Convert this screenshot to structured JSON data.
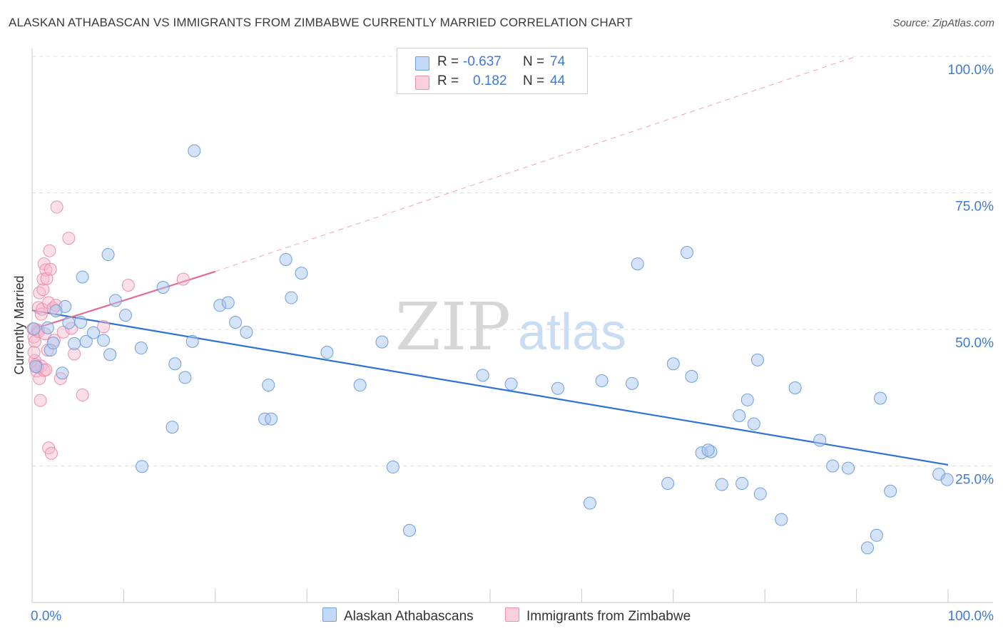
{
  "title": "ALASKAN ATHABASCAN VS IMMIGRANTS FROM ZIMBABWE CURRENTLY MARRIED CORRELATION CHART",
  "source": "Source: ZipAtlas.com",
  "watermark": {
    "zip": "ZIP",
    "atlas": "atlas"
  },
  "legend": {
    "rows": [
      {
        "r_label": "R =",
        "r_value": "-0.637",
        "n_label": "N =",
        "n_value": "74"
      },
      {
        "r_label": "R =",
        "r_value": "0.182",
        "n_label": "N =",
        "n_value": "44"
      }
    ]
  },
  "chart_data": {
    "type": "scatter",
    "title": "ALASKAN ATHABASCAN VS IMMIGRANTS FROM ZIMBABWE CURRENTLY MARRIED CORRELATION CHART",
    "xlabel": "",
    "ylabel": "Currently Married",
    "xlim": [
      0,
      100
    ],
    "ylim": [
      0,
      100
    ],
    "x_tick_labels": [
      "0.0%",
      "100.0%"
    ],
    "y_tick_labels": [
      "25.0%",
      "50.0%",
      "75.0%",
      "100.0%"
    ],
    "y_ticks": [
      25,
      50,
      75,
      100
    ],
    "grid": true,
    "colors": {
      "blue_fill": "#aac8f0",
      "blue_stroke": "#6f9fdc",
      "blue_line": "#2f72d0",
      "pink_fill": "#f6b9cc",
      "pink_stroke": "#ec8fab",
      "pink_line": "#e46b94",
      "axis_label": "#3d7ad6"
    },
    "series": [
      {
        "name": "Alaskan Athabascans",
        "color": "#aac8f0",
        "trend": {
          "x": [
            0,
            100
          ],
          "y": [
            53.5,
            25.2
          ]
        },
        "points": [
          [
            1.7,
            50.3
          ],
          [
            2.0,
            46.2
          ],
          [
            2.3,
            47.5
          ],
          [
            3.3,
            42.0
          ],
          [
            3.6,
            54.2
          ],
          [
            4.0,
            51.2
          ],
          [
            2.6,
            53.4
          ],
          [
            4.6,
            47.4
          ],
          [
            5.3,
            51.3
          ],
          [
            5.5,
            59.6
          ],
          [
            5.9,
            47.8
          ],
          [
            6.7,
            49.4
          ],
          [
            7.8,
            48.0
          ],
          [
            8.5,
            45.4
          ],
          [
            8.3,
            63.7
          ],
          [
            9.1,
            55.3
          ],
          [
            10.2,
            52.6
          ],
          [
            11.9,
            46.6
          ],
          [
            12.0,
            24.9
          ],
          [
            14.3,
            57.7
          ],
          [
            15.6,
            43.7
          ],
          [
            15.3,
            32.1
          ],
          [
            16.7,
            41.2
          ],
          [
            17.5,
            47.8
          ],
          [
            17.7,
            82.7
          ],
          [
            20.5,
            54.4
          ],
          [
            21.4,
            54.9
          ],
          [
            22.2,
            51.3
          ],
          [
            23.4,
            49.5
          ],
          [
            25.4,
            33.6
          ],
          [
            25.8,
            39.8
          ],
          [
            26.1,
            33.6
          ],
          [
            27.7,
            62.8
          ],
          [
            28.3,
            55.8
          ],
          [
            29.4,
            60.3
          ],
          [
            32.2,
            45.8
          ],
          [
            35.8,
            39.8
          ],
          [
            38.2,
            47.7
          ],
          [
            39.4,
            24.8
          ],
          [
            41.2,
            13.2
          ],
          [
            49.2,
            41.6
          ],
          [
            52.3,
            40.0
          ],
          [
            57.4,
            39.2
          ],
          [
            60.9,
            18.2
          ],
          [
            62.2,
            40.6
          ],
          [
            65.5,
            40.1
          ],
          [
            66.1,
            62.0
          ],
          [
            69.4,
            21.8
          ],
          [
            70.0,
            43.7
          ],
          [
            71.5,
            64.1
          ],
          [
            72.0,
            41.4
          ],
          [
            73.1,
            27.4
          ],
          [
            74.1,
            27.6
          ],
          [
            73.8,
            27.9
          ],
          [
            75.3,
            21.6
          ],
          [
            77.2,
            34.2
          ],
          [
            77.5,
            21.8
          ],
          [
            78.1,
            37.1
          ],
          [
            78.8,
            32.7
          ],
          [
            79.2,
            44.4
          ],
          [
            79.5,
            19.9
          ],
          [
            81.8,
            15.2
          ],
          [
            83.3,
            39.3
          ],
          [
            86.0,
            29.7
          ],
          [
            87.4,
            25.0
          ],
          [
            89.1,
            24.6
          ],
          [
            91.2,
            10.0
          ],
          [
            92.2,
            12.3
          ],
          [
            92.6,
            37.4
          ],
          [
            93.7,
            20.4
          ],
          [
            99.0,
            23.5
          ],
          [
            99.9,
            22.5
          ],
          [
            0.4,
            43.2
          ],
          [
            0.2,
            50.1
          ]
        ]
      },
      {
        "name": "Immigrants from Zimbabwe",
        "color": "#f6b9cc",
        "trend": {
          "x": [
            0,
            20
          ],
          "y": [
            50.0,
            60.6
          ],
          "extended": {
            "x": [
              20,
              90
            ],
            "y": [
              60.6,
              100
            ]
          }
        },
        "points": [
          [
            0.1,
            50.1
          ],
          [
            0.2,
            48.6
          ],
          [
            0.3,
            47.8
          ],
          [
            0.3,
            44.3
          ],
          [
            0.4,
            43.5
          ],
          [
            0.5,
            42.4
          ],
          [
            0.6,
            49.9
          ],
          [
            0.7,
            49.6
          ],
          [
            0.7,
            54.0
          ],
          [
            0.8,
            56.7
          ],
          [
            0.8,
            41.0
          ],
          [
            0.9,
            37.0
          ],
          [
            1.0,
            52.8
          ],
          [
            1.0,
            43.3
          ],
          [
            1.1,
            53.7
          ],
          [
            1.2,
            57.3
          ],
          [
            1.2,
            59.2
          ],
          [
            1.3,
            62.0
          ],
          [
            1.3,
            42.5
          ],
          [
            1.4,
            49.2
          ],
          [
            1.5,
            60.9
          ],
          [
            1.6,
            59.3
          ],
          [
            1.7,
            46.2
          ],
          [
            1.8,
            54.9
          ],
          [
            1.8,
            28.3
          ],
          [
            1.9,
            64.4
          ],
          [
            2.0,
            61.0
          ],
          [
            2.1,
            27.3
          ],
          [
            2.3,
            53.9
          ],
          [
            2.4,
            48.0
          ],
          [
            2.6,
            54.4
          ],
          [
            2.7,
            72.4
          ],
          [
            3.1,
            41.0
          ],
          [
            3.4,
            49.5
          ],
          [
            4.0,
            66.7
          ],
          [
            4.3,
            50.2
          ],
          [
            4.6,
            45.5
          ],
          [
            5.5,
            38.0
          ],
          [
            7.8,
            50.5
          ],
          [
            10.5,
            58.1
          ],
          [
            16.5,
            59.2
          ],
          [
            0.2,
            45.8
          ],
          [
            0.6,
            43.1
          ],
          [
            1.5,
            42.6
          ]
        ]
      }
    ]
  },
  "bottom_legend": [
    "Alaskan Athabascans",
    "Immigrants from Zimbabwe"
  ]
}
